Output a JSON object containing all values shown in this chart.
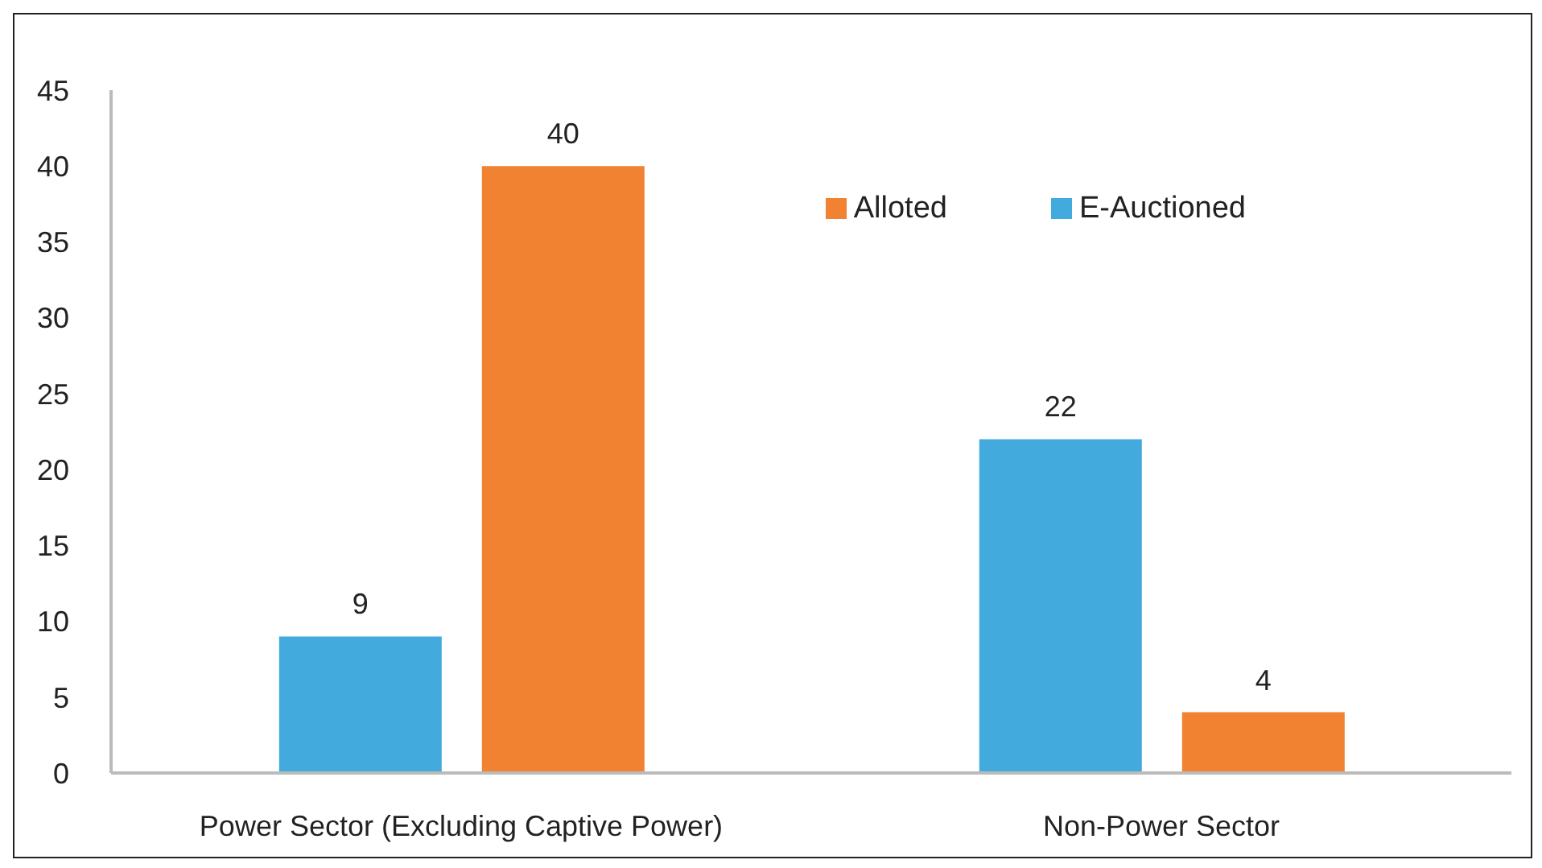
{
  "chart_data": {
    "type": "bar",
    "categories": [
      "Power Sector (Excluding Captive  Power)",
      "Non-Power Sector"
    ],
    "series": [
      {
        "name": "E-Auctioned",
        "color": "#42aadc",
        "values": [
          9,
          22
        ]
      },
      {
        "name": "Alloted",
        "color": "#f08232",
        "values": [
          40,
          4
        ]
      }
    ],
    "ylim": [
      0,
      45
    ],
    "yticks": [
      0,
      5,
      10,
      15,
      20,
      25,
      30,
      35,
      40,
      45
    ],
    "grid": false,
    "legend": "top right",
    "data_labels": true
  }
}
